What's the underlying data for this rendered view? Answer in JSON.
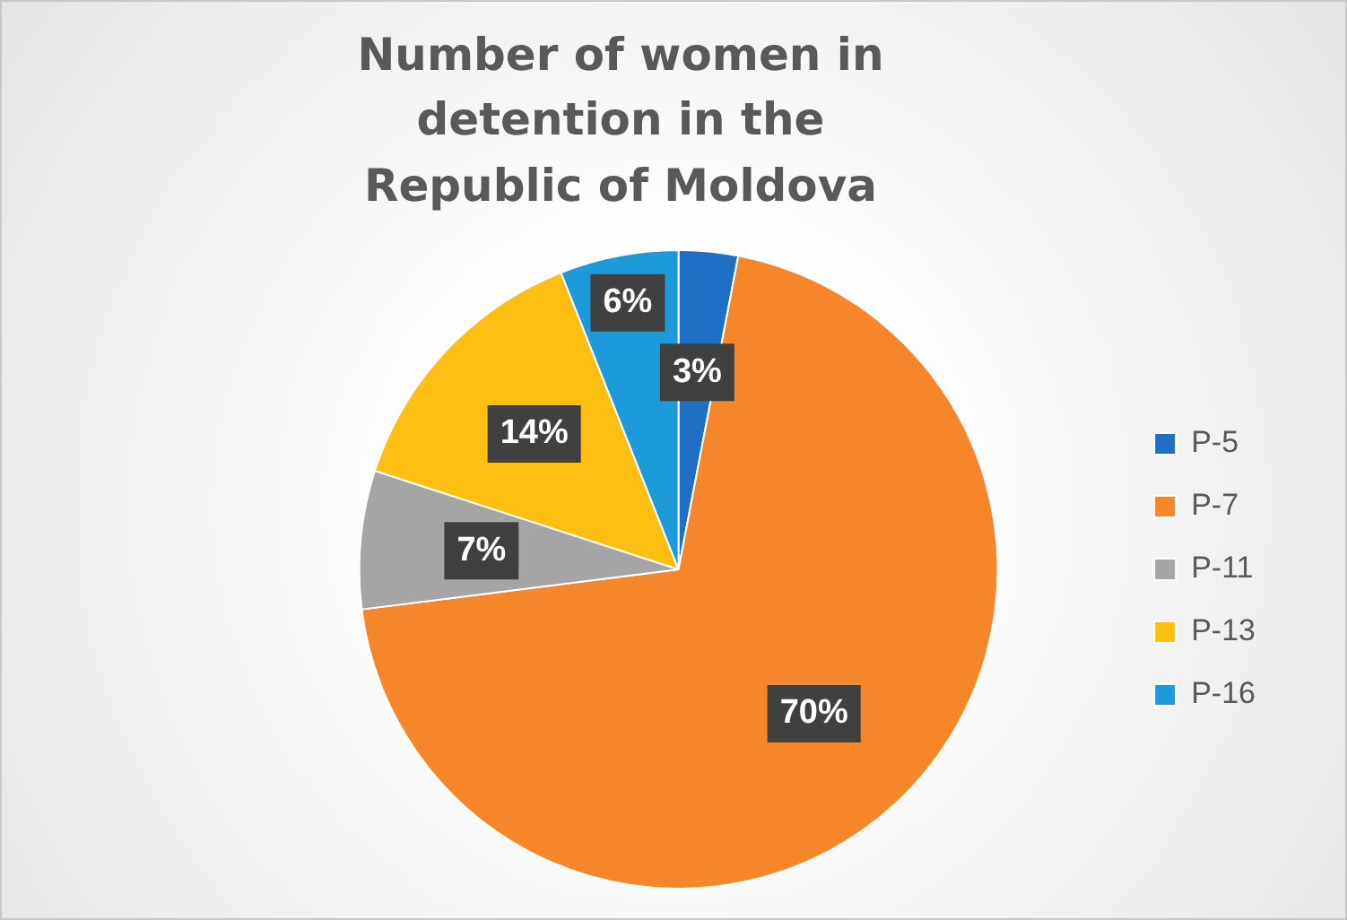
{
  "chart_data": {
    "type": "pie",
    "title": "Number of women in detention in the Republic of Moldova",
    "categories": [
      "P-5",
      "P-7",
      "P-11",
      "P-13",
      "P-16"
    ],
    "values": [
      3,
      70,
      7,
      14,
      6
    ],
    "colors": [
      "#1f6fc5",
      "#f5862a",
      "#a5a5a5",
      "#fdbf12",
      "#1d9ad9"
    ],
    "value_labels": [
      "3%",
      "70%",
      "7%",
      "14%",
      "6%"
    ],
    "legend": "right"
  }
}
